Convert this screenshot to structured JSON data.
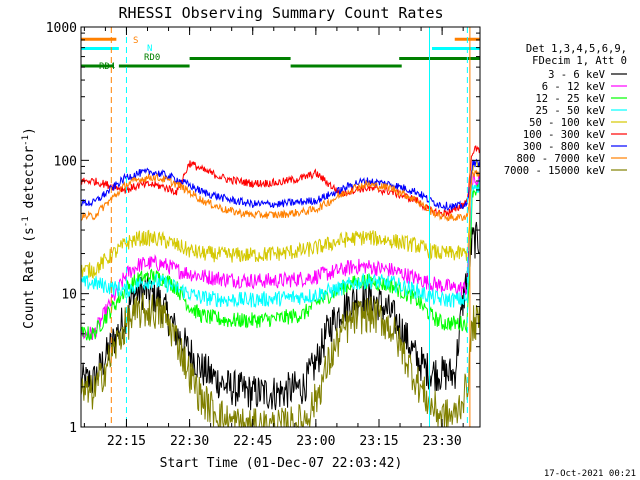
{
  "chart_data": {
    "type": "line",
    "title": "RHESSI Observing Summary Count Rates",
    "xlabel": "Start Time (01-Dec-07 22:03:42)",
    "ylabel_main": "Count Rate (s",
    "ylabel_sup1": "-1",
    "ylabel_mid": " detector",
    "ylabel_sup2": "-1",
    "ylabel_end": ")",
    "yscale": "log",
    "ylim": [
      1,
      1000
    ],
    "xlim_minutes": [
      22.07,
      23.65
    ],
    "x_ticks": [
      {
        "label": "22:15",
        "t": 22.25
      },
      {
        "label": "22:30",
        "t": 22.5
      },
      {
        "label": "22:45",
        "t": 22.75
      },
      {
        "label": "23:00",
        "t": 23.0
      },
      {
        "label": "23:15",
        "t": 23.25
      },
      {
        "label": "23:30",
        "t": 23.5
      }
    ],
    "y_ticks": [
      {
        "label": "1",
        "v": 1
      },
      {
        "label": "10",
        "v": 10
      },
      {
        "label": "100",
        "v": 100
      },
      {
        "label": "1000",
        "v": 1000
      }
    ],
    "legend": {
      "placement": "right",
      "header": [
        "Det 1,3,4,5,6,9,",
        "FDecim 1, Att 0"
      ],
      "entries": [
        {
          "label": "3 - 6 keV",
          "color": "#000000"
        },
        {
          "label": "6 - 12 keV",
          "color": "#ff00ff"
        },
        {
          "label": "12 - 25 keV",
          "color": "#00ff00"
        },
        {
          "label": "25 - 50 keV",
          "color": "#00ffff"
        },
        {
          "label": "50 - 100 keV",
          "color": "#d4c800"
        },
        {
          "label": "100 - 300 keV",
          "color": "#ff0000"
        },
        {
          "label": "300 - 800 keV",
          "color": "#0000ff"
        },
        {
          "label": "800 - 7000 keV",
          "color": "#ff8000"
        },
        {
          "label": "7000 - 15000 keV",
          "color": "#808000"
        }
      ]
    },
    "flags": [
      {
        "label": "S",
        "color": "#ff8000",
        "segments": [
          [
            22.07,
            22.21
          ],
          [
            23.55,
            23.65
          ]
        ],
        "level": 810
      },
      {
        "label": "N",
        "color": "#00ffff",
        "segments": [
          [
            22.07,
            22.22
          ],
          [
            23.46,
            23.65
          ]
        ],
        "level": 690
      },
      {
        "label": "RD0",
        "color": "#008000",
        "segments": [
          [
            22.5,
            22.9
          ],
          [
            23.33,
            23.65
          ]
        ],
        "level": 580
      },
      {
        "label": "RD4",
        "color": "#008000",
        "segments": [
          [
            22.07,
            22.2
          ],
          [
            22.22,
            22.5
          ],
          [
            22.9,
            23.34
          ]
        ],
        "level": 510
      }
    ],
    "event_lines": [
      {
        "t": 22.19,
        "color": "#ff8000",
        "style": "dashed"
      },
      {
        "t": 22.25,
        "color": "#00ffff",
        "style": "dashed"
      },
      {
        "t": 23.45,
        "color": "#00ffff",
        "style": "solid"
      },
      {
        "t": 23.61,
        "color": "#ff8000",
        "style": "solid"
      },
      {
        "t": 23.6,
        "color": "#00ffff",
        "style": "dashed"
      }
    ],
    "series": [
      {
        "name": "3 - 6 keV",
        "color": "#000000",
        "x": [
          22.07,
          22.12,
          22.25,
          22.28,
          22.33,
          22.38,
          22.45,
          22.55,
          22.65,
          22.75,
          22.85,
          22.95,
          23.0,
          23.05,
          23.1,
          23.15,
          23.2,
          23.25,
          23.3,
          23.35,
          23.4,
          23.45,
          23.5,
          23.55,
          23.58,
          23.62
        ],
        "y": [
          2.2,
          2.2,
          7,
          10,
          10.5,
          9,
          5,
          2.7,
          2,
          1.8,
          1.8,
          2,
          3,
          5.5,
          7.5,
          9,
          9.2,
          8.5,
          7,
          5,
          3.2,
          2.6,
          2.5,
          2.5,
          8,
          25
        ]
      },
      {
        "name": "6 - 12 keV",
        "color": "#ff00ff",
        "x": [
          22.07,
          22.12,
          22.25,
          22.3,
          22.35,
          22.4,
          22.45,
          22.55,
          22.65,
          22.75,
          22.85,
          22.95,
          23.0,
          23.1,
          23.15,
          23.2,
          23.3,
          23.4,
          23.45,
          23.5,
          23.55,
          23.6,
          23.62
        ],
        "y": [
          5,
          5,
          14,
          16.5,
          17,
          16.5,
          15,
          13.5,
          12.8,
          12.5,
          12.5,
          13,
          13.5,
          15,
          16,
          16,
          15,
          13,
          12,
          11.5,
          11,
          11,
          70
        ]
      },
      {
        "name": "12 - 25 keV",
        "color": "#00ff00",
        "x": [
          22.07,
          22.12,
          22.25,
          22.3,
          22.35,
          22.4,
          22.45,
          22.5,
          22.55,
          22.65,
          22.75,
          22.85,
          22.95,
          23.0,
          23.1,
          23.15,
          23.2,
          23.3,
          23.4,
          23.45,
          23.5,
          23.55,
          23.6,
          23.62
        ],
        "y": [
          5,
          5,
          11,
          13,
          13.5,
          13,
          11,
          8,
          6.8,
          6.3,
          6.3,
          6.5,
          7,
          8.5,
          11,
          12,
          12.5,
          11.5,
          9,
          7,
          6,
          6,
          6,
          60
        ]
      },
      {
        "name": "25 - 50 keV",
        "color": "#00ffff",
        "x": [
          22.07,
          22.12,
          22.25,
          22.3,
          22.35,
          22.4,
          22.45,
          22.5,
          22.55,
          22.65,
          22.75,
          22.85,
          22.95,
          23.0,
          23.1,
          23.15,
          23.2,
          23.3,
          23.4,
          23.45,
          23.5,
          23.55,
          23.6,
          23.62
        ],
        "y": [
          12,
          12,
          10.5,
          12,
          12.5,
          12,
          11,
          10,
          9.3,
          9,
          9,
          9.2,
          9.5,
          9.8,
          11,
          12,
          12.5,
          12,
          10.5,
          9.5,
          9,
          9,
          9,
          65
        ]
      },
      {
        "name": "50 - 100 keV",
        "color": "#d4c800",
        "x": [
          22.07,
          22.12,
          22.25,
          22.3,
          22.35,
          22.4,
          22.45,
          22.5,
          22.55,
          22.65,
          22.75,
          22.85,
          22.95,
          23.0,
          23.1,
          23.15,
          23.2,
          23.3,
          23.4,
          23.45,
          23.5,
          23.55,
          23.6,
          23.62
        ],
        "y": [
          15,
          15,
          24,
          26,
          26,
          25,
          23,
          21,
          20,
          19.5,
          19.5,
          20,
          21,
          22,
          25,
          26,
          26.5,
          25,
          23,
          21,
          20,
          20,
          20,
          90
        ]
      },
      {
        "name": "100 - 300 keV",
        "color": "#ff0000",
        "x": [
          22.07,
          22.12,
          22.25,
          22.3,
          22.35,
          22.4,
          22.45,
          22.5,
          22.55,
          22.65,
          22.75,
          22.85,
          22.95,
          23.0,
          23.1,
          23.15,
          23.2,
          23.3,
          23.4,
          23.45,
          23.5,
          23.55,
          23.6,
          23.62
        ],
        "y": [
          70,
          70,
          60,
          65,
          66,
          63,
          58,
          96,
          85,
          72,
          67,
          68,
          74,
          80,
          56,
          60,
          62,
          58,
          50,
          42,
          40,
          42,
          50,
          120
        ]
      },
      {
        "name": "300 - 800 keV",
        "color": "#0000ff",
        "x": [
          22.07,
          22.12,
          22.25,
          22.3,
          22.35,
          22.4,
          22.45,
          22.5,
          22.55,
          22.65,
          22.75,
          22.85,
          22.95,
          23.0,
          23.1,
          23.15,
          23.2,
          23.3,
          23.4,
          23.45,
          23.5,
          23.55,
          23.6,
          23.62
        ],
        "y": [
          48,
          48,
          75,
          80,
          82,
          78,
          72,
          65,
          58,
          51,
          47,
          47,
          49,
          50,
          60,
          67,
          70,
          66,
          58,
          50,
          46,
          45,
          46,
          95
        ]
      },
      {
        "name": "800 - 7000 keV",
        "color": "#ff8000",
        "x": [
          22.07,
          22.12,
          22.25,
          22.3,
          22.35,
          22.4,
          22.45,
          22.5,
          22.55,
          22.65,
          22.75,
          22.85,
          22.95,
          23.0,
          23.1,
          23.15,
          23.2,
          23.3,
          23.4,
          23.45,
          23.5,
          23.55,
          23.6,
          23.62
        ],
        "y": [
          38,
          38,
          66,
          72,
          75,
          72,
          66,
          58,
          50,
          42,
          39,
          39,
          41,
          43,
          55,
          62,
          66,
          62,
          50,
          42,
          38,
          37,
          38,
          80
        ]
      },
      {
        "name": "7000 - 15000 keV",
        "color": "#808000",
        "x": [
          22.07,
          22.12,
          22.25,
          22.3,
          22.35,
          22.4,
          22.45,
          22.5,
          22.55,
          22.65,
          22.75,
          22.85,
          22.95,
          23.0,
          23.05,
          23.1,
          23.15,
          23.2,
          23.25,
          23.3,
          23.35,
          23.4,
          23.45,
          23.5,
          23.55,
          23.6,
          23.62
        ],
        "y": [
          1.8,
          1.8,
          6,
          7.3,
          7.5,
          6.8,
          4.5,
          2.5,
          1.6,
          1.1,
          1,
          1,
          1.1,
          1.6,
          3,
          5,
          6.5,
          7,
          6.7,
          5.5,
          3.5,
          2.2,
          1.5,
          1.2,
          1.2,
          2,
          6
        ]
      }
    ]
  },
  "footer_timestamp": "17-Oct-2021 00:21"
}
